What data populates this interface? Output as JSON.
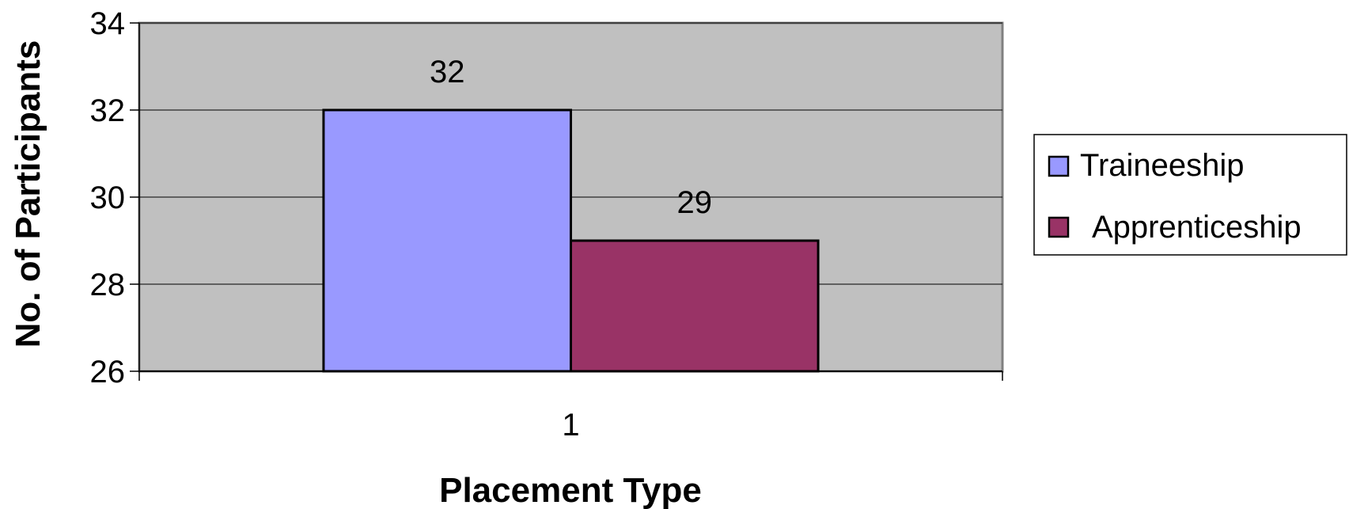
{
  "chart_data": {
    "type": "bar",
    "categories": [
      "1"
    ],
    "series": [
      {
        "name": "Traineeship",
        "values": [
          32
        ],
        "color": "#9999FF"
      },
      {
        "name": "Apprenticeship",
        "values": [
          29
        ],
        "color": "#993366"
      }
    ],
    "data_labels": [
      "32",
      "29"
    ],
    "xlabel": "Placement Type",
    "ylabel": "No. of Participants",
    "ylim": [
      26,
      34
    ],
    "yticks": [
      26,
      28,
      30,
      32,
      34
    ],
    "grid": true,
    "plot_background": "#C0C0C0",
    "legend_position": "right"
  }
}
